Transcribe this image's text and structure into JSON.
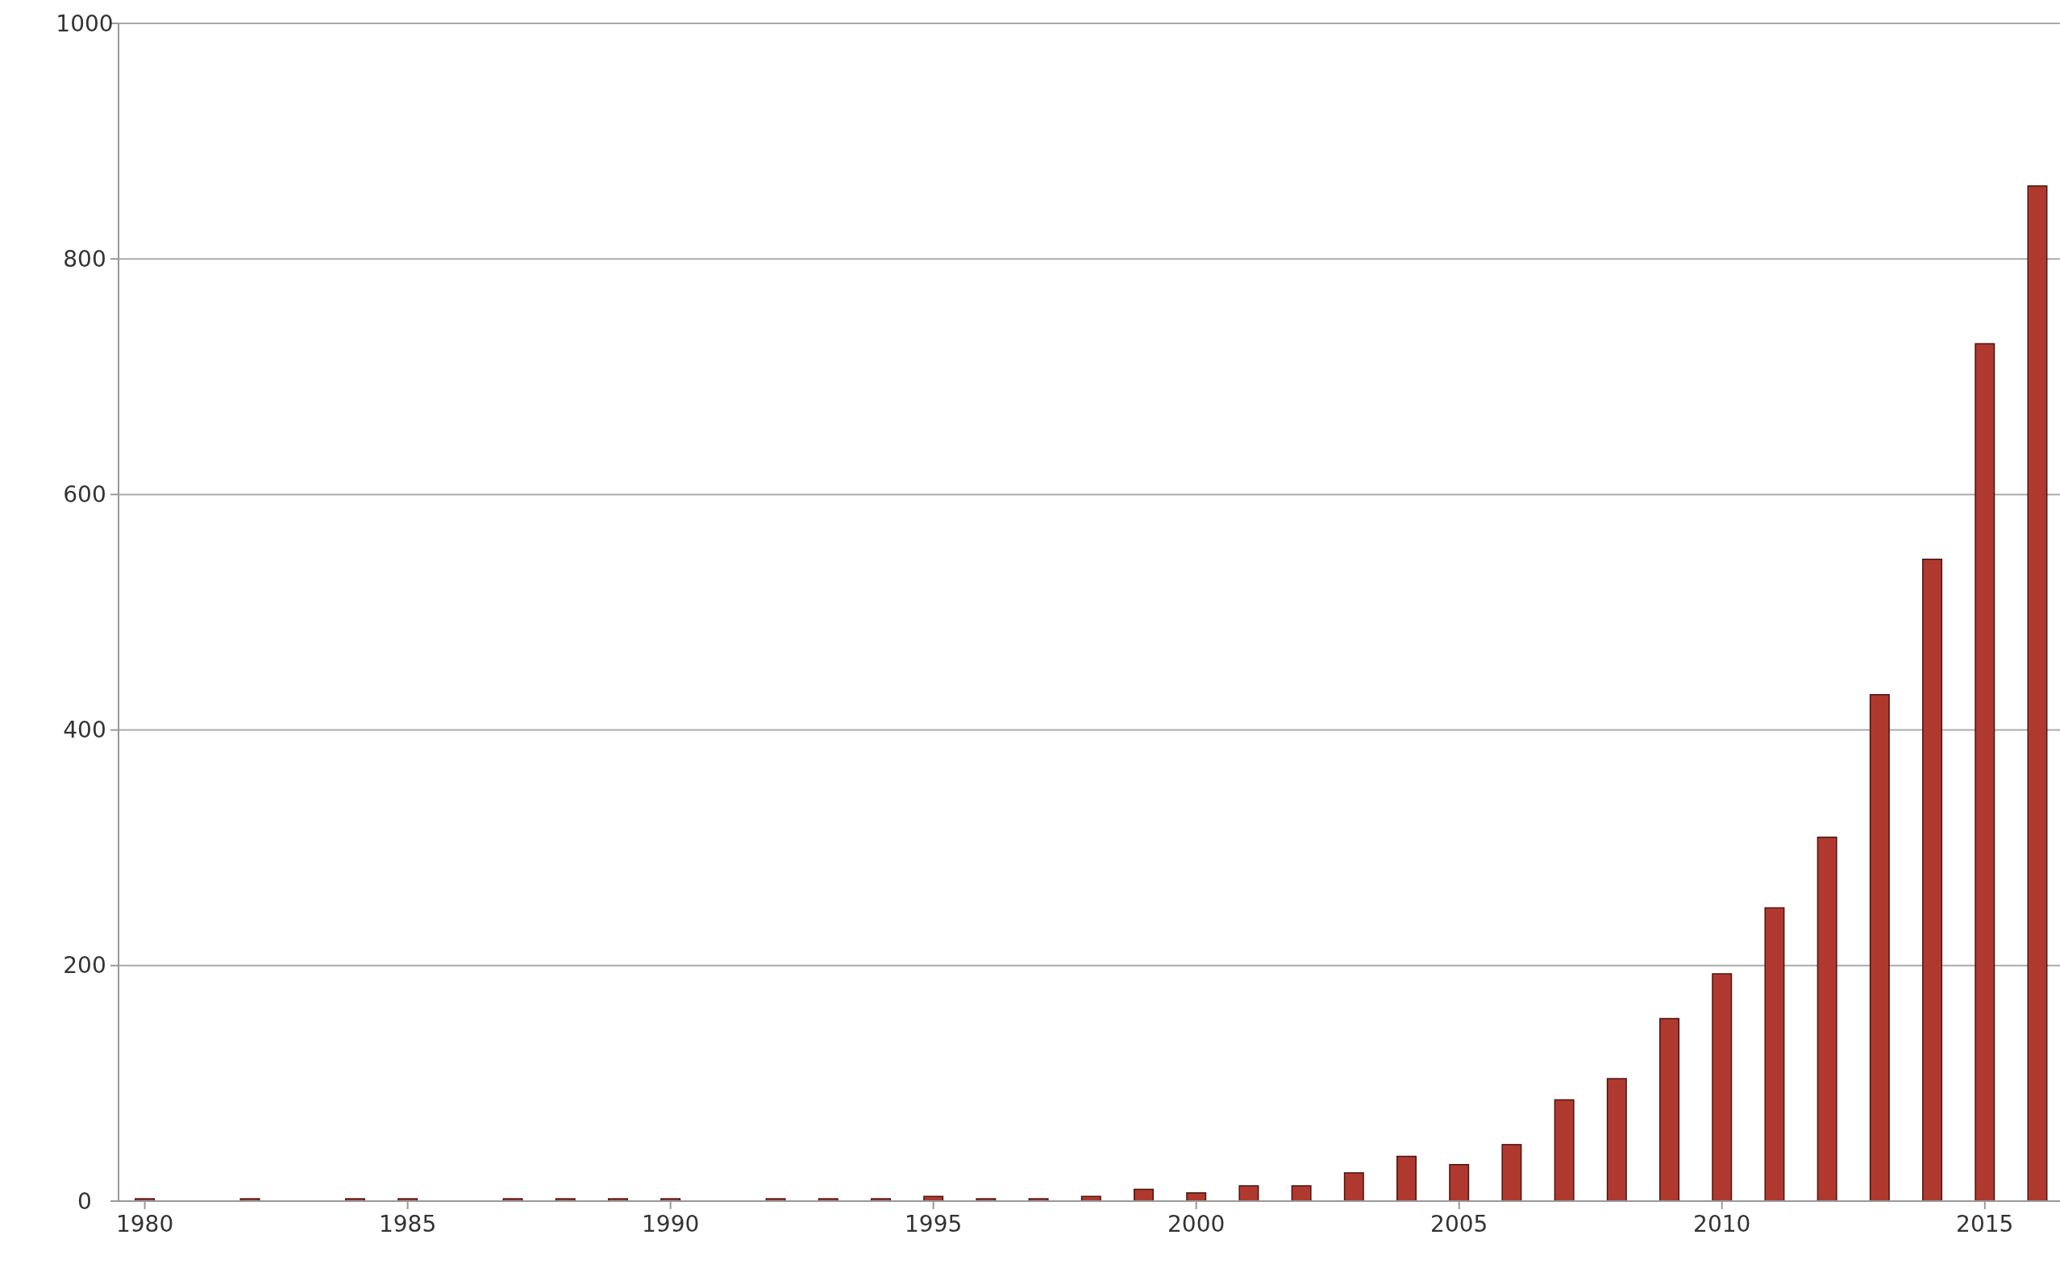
{
  "chart_data": {
    "type": "bar",
    "x": [
      1980,
      1981,
      1982,
      1983,
      1984,
      1985,
      1986,
      1987,
      1988,
      1989,
      1990,
      1991,
      1992,
      1993,
      1994,
      1995,
      1996,
      1997,
      1998,
      1999,
      2000,
      2001,
      2002,
      2003,
      2004,
      2005,
      2006,
      2007,
      2008,
      2009,
      2010,
      2011,
      2012,
      2013,
      2014,
      2015,
      2016
    ],
    "values": [
      2,
      null,
      2,
      null,
      2,
      2,
      null,
      2,
      2,
      2,
      2,
      null,
      2,
      2,
      2,
      4,
      2,
      2,
      4,
      10,
      7,
      13,
      13,
      24,
      38,
      31,
      48,
      86,
      104,
      155,
      193,
      249,
      309,
      430,
      545,
      728,
      862
    ],
    "color": "#b0392f",
    "xlim": [
      1979.5,
      2016.2
    ],
    "xticks": [
      1980,
      1985,
      1990,
      1995,
      2000,
      2005,
      2010,
      2015
    ],
    "ylim": [
      0,
      1000
    ],
    "yticks": [
      0,
      200,
      400,
      600,
      800,
      1000
    ],
    "grid": "y"
  }
}
